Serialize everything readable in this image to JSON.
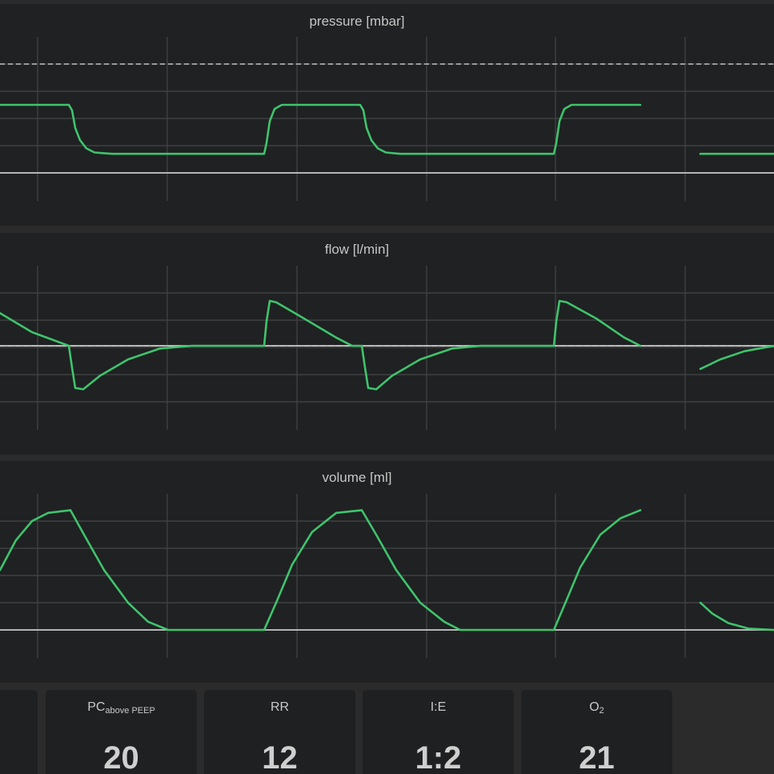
{
  "chart_data": [
    {
      "type": "line",
      "title": "pressure [mbar]",
      "color": "#3ec46d",
      "series": [
        {
          "segments": [
            [
              [
                0,
                5
              ],
              [
                86,
                5
              ],
              [
                90,
                4.6
              ],
              [
                94,
                3.3
              ],
              [
                100,
                2.4
              ],
              [
                108,
                1.8
              ],
              [
                118,
                1.5
              ],
              [
                140,
                1.4
              ],
              [
                330,
                1.4
              ],
              [
                333,
                2.2
              ],
              [
                337,
                3.8
              ],
              [
                343,
                4.7
              ],
              [
                352,
                5
              ],
              [
                450,
                5
              ],
              [
                454,
                4.6
              ],
              [
                458,
                3.3
              ],
              [
                464,
                2.4
              ],
              [
                472,
                1.8
              ],
              [
                482,
                1.5
              ],
              [
                500,
                1.4
              ],
              [
                692,
                1.4
              ],
              [
                695,
                2.2
              ],
              [
                699,
                3.8
              ],
              [
                705,
                4.7
              ],
              [
                714,
                5
              ],
              [
                800,
                5
              ]
            ],
            [
              [
                875,
                1.4
              ],
              [
                967,
                1.4
              ]
            ]
          ]
        }
      ],
      "reference_lines": {
        "baseline": 0,
        "dashed": 8
      }
    },
    {
      "type": "line",
      "title": "flow [l/min]",
      "color": "#3ec46d",
      "series": [
        {
          "segments": [
            [
              [
                0,
                1.2
              ],
              [
                40,
                0.5
              ],
              [
                86,
                0
              ],
              [
                90,
                -0.8
              ],
              [
                94,
                -1.55
              ],
              [
                104,
                -1.6
              ],
              [
                125,
                -1.1
              ],
              [
                160,
                -0.5
              ],
              [
                200,
                -0.1
              ],
              [
                240,
                0
              ],
              [
                330,
                0
              ],
              [
                333,
                0.9
              ],
              [
                337,
                1.65
              ],
              [
                345,
                1.6
              ],
              [
                380,
                1
              ],
              [
                420,
                0.3
              ],
              [
                440,
                0
              ],
              [
                452,
                0
              ],
              [
                456,
                -0.8
              ],
              [
                460,
                -1.55
              ],
              [
                470,
                -1.6
              ],
              [
                490,
                -1.1
              ],
              [
                525,
                -0.5
              ],
              [
                565,
                -0.1
              ],
              [
                600,
                0
              ],
              [
                692,
                0
              ],
              [
                695,
                0.9
              ],
              [
                699,
                1.65
              ],
              [
                708,
                1.6
              ],
              [
                745,
                1
              ],
              [
                780,
                0.3
              ],
              [
                800,
                0
              ]
            ],
            [
              [
                875,
                -0.85
              ],
              [
                900,
                -0.5
              ],
              [
                930,
                -0.2
              ],
              [
                967,
                0
              ]
            ]
          ]
        }
      ],
      "reference_lines": {
        "baseline": 0,
        "dashed": 0
      }
    },
    {
      "type": "line",
      "title": "volume [ml]",
      "color": "#3ec46d",
      "series": [
        {
          "segments": [
            [
              [
                0,
                2.2
              ],
              [
                20,
                3.3
              ],
              [
                40,
                4
              ],
              [
                60,
                4.3
              ],
              [
                88,
                4.4
              ],
              [
                105,
                3.5
              ],
              [
                130,
                2.2
              ],
              [
                160,
                1
              ],
              [
                185,
                0.3
              ],
              [
                210,
                0
              ],
              [
                330,
                0
              ],
              [
                345,
                1
              ],
              [
                365,
                2.4
              ],
              [
                390,
                3.6
              ],
              [
                420,
                4.3
              ],
              [
                452,
                4.4
              ],
              [
                470,
                3.5
              ],
              [
                495,
                2.2
              ],
              [
                525,
                1
              ],
              [
                555,
                0.3
              ],
              [
                575,
                0
              ],
              [
                692,
                0
              ],
              [
                705,
                0.9
              ],
              [
                725,
                2.3
              ],
              [
                750,
                3.5
              ],
              [
                775,
                4.1
              ],
              [
                800,
                4.4
              ]
            ],
            [
              [
                875,
                1
              ],
              [
                890,
                0.6
              ],
              [
                910,
                0.25
              ],
              [
                935,
                0.05
              ],
              [
                967,
                0
              ]
            ]
          ]
        }
      ],
      "reference_lines": {
        "baseline": 0
      }
    }
  ],
  "parameters": [
    {
      "label_main": "PC",
      "label_sub": "above PEEP",
      "value": "20"
    },
    {
      "label_main": "RR",
      "label_sub": "",
      "value": "12"
    },
    {
      "label_main": "I:E",
      "label_sub": "",
      "value": "1:2"
    },
    {
      "label_main": "O",
      "label_sub": "2",
      "value": "21"
    }
  ]
}
